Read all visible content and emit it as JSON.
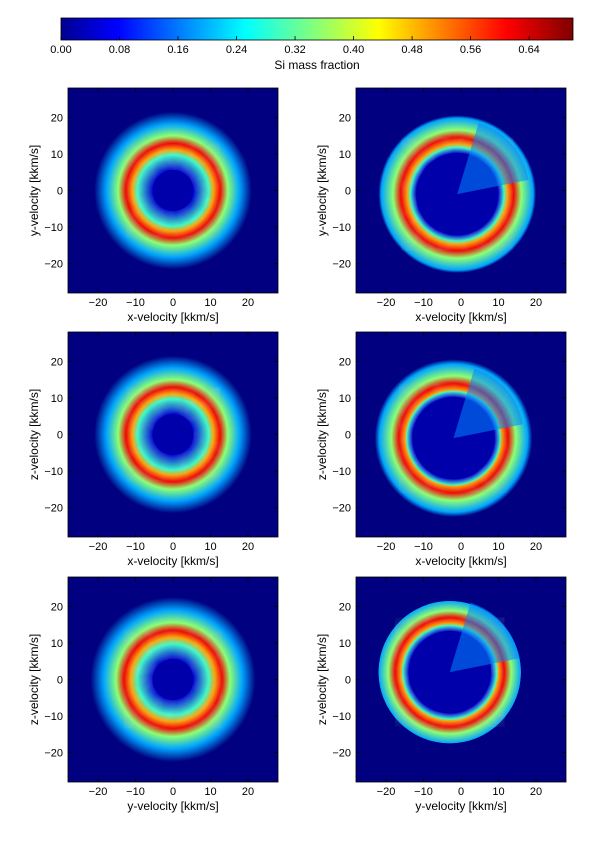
{
  "colorbar": {
    "label": "Si mass fraction",
    "ticks": [
      "0.00",
      "0.08",
      "0.16",
      "0.24",
      "0.32",
      "0.40",
      "0.48",
      "0.56",
      "0.64"
    ],
    "tick_values": [
      0.0,
      0.08,
      0.16,
      0.24,
      0.32,
      0.4,
      0.48,
      0.56,
      0.64
    ],
    "range": [
      0.0,
      0.7
    ],
    "colormap": "jet"
  },
  "chart_data": [
    {
      "type": "heatmap",
      "xlabel": "x-velocity [kkm/s]",
      "ylabel": "y-velocity [kkm/s]",
      "xlim": [
        -28,
        28
      ],
      "ylim": [
        -28,
        28
      ],
      "xticks": [
        -20,
        -10,
        0,
        10,
        20
      ],
      "yticks": [
        -20,
        -10,
        0,
        10,
        20
      ],
      "xtick_labels": [
        "−20",
        "−10",
        "0",
        "10",
        "20"
      ],
      "ytick_labels": [
        "−20",
        "−10",
        "0",
        "10",
        "20"
      ],
      "features": {
        "inner_hole_radius": 5.5,
        "mixed_ring_radius": 9.5,
        "peak_shell_radius": 12.5,
        "peak_value": 0.62,
        "outer_halo_radius": 21,
        "offset": [
          0,
          0
        ]
      }
    },
    {
      "type": "heatmap",
      "xlabel": "x-velocity [kkm/s]",
      "ylabel": "y-velocity [kkm/s]",
      "xlim": [
        -28,
        28
      ],
      "ylim": [
        -28,
        28
      ],
      "xticks": [
        -20,
        -10,
        0,
        10,
        20
      ],
      "yticks": [
        -20,
        -10,
        0,
        10,
        20
      ],
      "xtick_labels": [
        "−20",
        "−10",
        "0",
        "10",
        "20"
      ],
      "ytick_labels": [
        "−20",
        "−10",
        "0",
        "10",
        "20"
      ],
      "features": {
        "inner_hole_radius": 11,
        "mixed_ring_radius": 12.5,
        "peak_shell_radius": 15,
        "peak_value": 0.62,
        "outer_halo_radius": 21,
        "offset": [
          -1,
          -1
        ]
      }
    },
    {
      "type": "heatmap",
      "xlabel": "x-velocity [kkm/s]",
      "ylabel": "z-velocity [kkm/s]",
      "xlim": [
        -28,
        28
      ],
      "ylim": [
        -28,
        28
      ],
      "xticks": [
        -20,
        -10,
        0,
        10,
        20
      ],
      "yticks": [
        -20,
        -10,
        0,
        10,
        20
      ],
      "xtick_labels": [
        "−20",
        "−10",
        "0",
        "10",
        "20"
      ],
      "ytick_labels": [
        "−20",
        "−10",
        "0",
        "10",
        "20"
      ],
      "features": {
        "inner_hole_radius": 5.5,
        "mixed_ring_radius": 9.5,
        "peak_shell_radius": 12.5,
        "peak_value": 0.62,
        "outer_halo_radius": 21,
        "offset": [
          0,
          0
        ]
      }
    },
    {
      "type": "heatmap",
      "xlabel": "x-velocity [kkm/s]",
      "ylabel": "z-velocity [kkm/s]",
      "xlim": [
        -28,
        28
      ],
      "ylim": [
        -28,
        28
      ],
      "xticks": [
        -20,
        -10,
        0,
        10,
        20
      ],
      "yticks": [
        -20,
        -10,
        0,
        10,
        20
      ],
      "xtick_labels": [
        "−20",
        "−10",
        "0",
        "10",
        "20"
      ],
      "ytick_labels": [
        "−20",
        "−10",
        "0",
        "10",
        "20"
      ],
      "features": {
        "inner_hole_radius": 11,
        "mixed_ring_radius": 12.5,
        "peak_shell_radius": 14.5,
        "peak_value": 0.62,
        "outer_halo_radius": 21,
        "offset": [
          -2,
          -1
        ]
      }
    },
    {
      "type": "heatmap",
      "xlabel": "y-velocity [kkm/s]",
      "ylabel": "z-velocity [kkm/s]",
      "xlim": [
        -28,
        28
      ],
      "ylim": [
        -28,
        28
      ],
      "xticks": [
        -20,
        -10,
        0,
        10,
        20
      ],
      "yticks": [
        -20,
        -10,
        0,
        10,
        20
      ],
      "xtick_labels": [
        "−20",
        "−10",
        "0",
        "10",
        "20"
      ],
      "ytick_labels": [
        "−20",
        "−10",
        "0",
        "10",
        "20"
      ],
      "features": {
        "inner_hole_radius": 5.5,
        "mixed_ring_radius": 9.5,
        "peak_shell_radius": 13,
        "peak_value": 0.62,
        "outer_halo_radius": 22,
        "offset": [
          0,
          0
        ]
      }
    },
    {
      "type": "heatmap",
      "xlabel": "y-velocity [kkm/s]",
      "ylabel": "z-velocity [kkm/s]",
      "xlim": [
        -28,
        28
      ],
      "ylim": [
        -28,
        28
      ],
      "xticks": [
        -20,
        -10,
        0,
        10,
        20
      ],
      "yticks": [
        -20,
        -10,
        0,
        10,
        20
      ],
      "xtick_labels": [
        "−20",
        "−10",
        "0",
        "10",
        "20"
      ],
      "ytick_labels": [
        "−20",
        "−10",
        "0",
        "10",
        "20"
      ],
      "features": {
        "inner_hole_radius": 11,
        "mixed_ring_radius": 12.5,
        "peak_shell_radius": 14.5,
        "peak_value": 0.62,
        "outer_halo_radius": 19,
        "offset": [
          -3,
          2
        ]
      }
    }
  ]
}
